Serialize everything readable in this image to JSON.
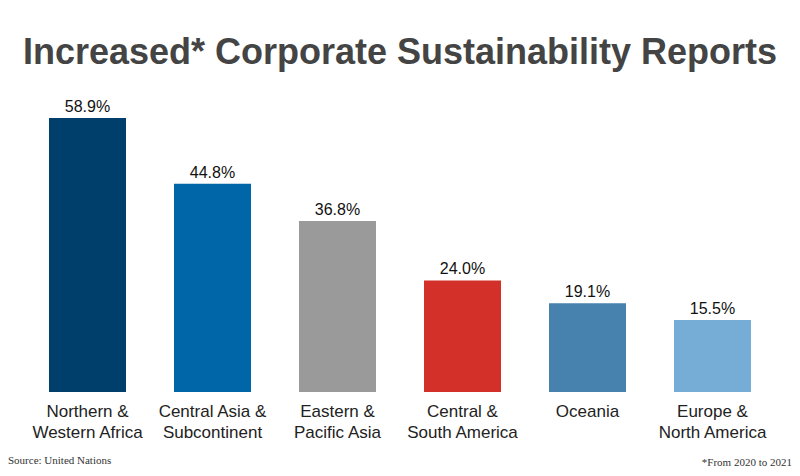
{
  "chart_data": {
    "type": "bar",
    "title": "Increased* Corporate Sustainability Reports",
    "categories": [
      "Northern & Western Africa",
      "Central Asia & Subcontinent",
      "Eastern & Pacific Asia",
      "Central & South America",
      "Oceania",
      "Europe & North America"
    ],
    "values": [
      58.9,
      44.8,
      36.8,
      24.0,
      19.1,
      15.5
    ],
    "value_labels": [
      "58.9%",
      "44.8%",
      "36.8%",
      "24.0%",
      "19.1%",
      "15.5%"
    ],
    "colors": [
      "#003f6b",
      "#0066a8",
      "#9a9a9a",
      "#d3302a",
      "#4682ad",
      "#75add6"
    ],
    "ylim": [
      0,
      60
    ],
    "data_labels": true,
    "tick_labels": "x",
    "grid": false,
    "source": "Source: United Nations",
    "footnote": "*From 2020 to 2021"
  }
}
